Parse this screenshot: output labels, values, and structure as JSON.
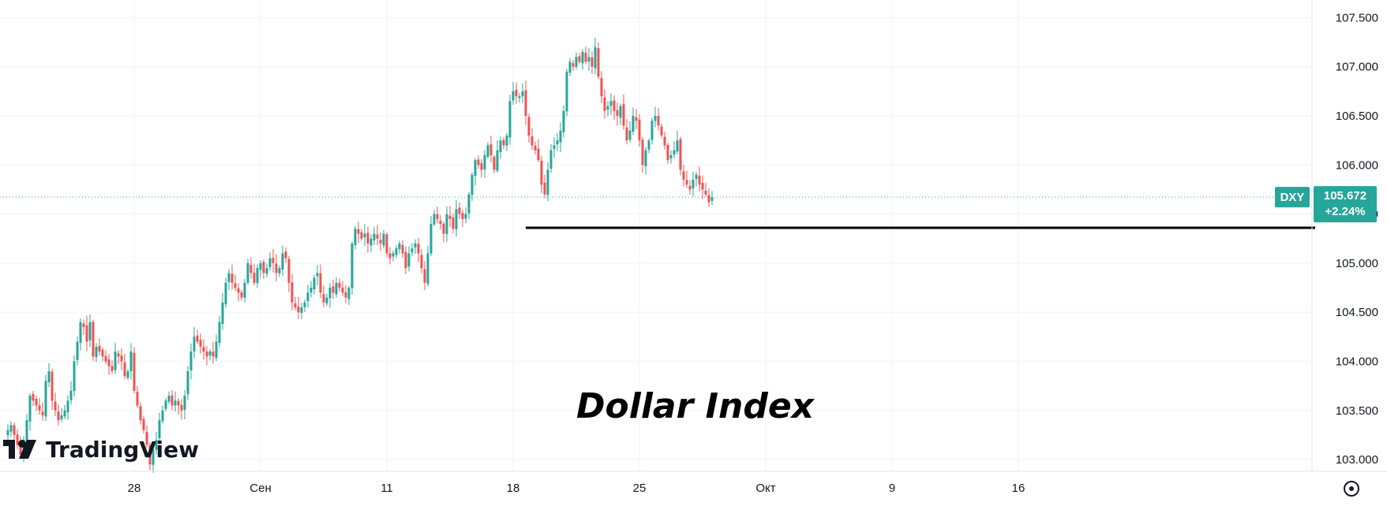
{
  "chart_data": {
    "type": "candlestick",
    "symbol": "DXY",
    "last_price": "105.672",
    "change": "+2.24%",
    "annotation": "Dollar Index",
    "brand": "TradingView",
    "y_ticks": [
      "107.500",
      "107.000",
      "106.500",
      "106.000",
      "105.500",
      "105.000",
      "104.500",
      "104.000",
      "103.500",
      "103.000"
    ],
    "y_tick_values": [
      107.5,
      107.0,
      106.5,
      106.0,
      105.5,
      105.0,
      104.5,
      104.0,
      103.5,
      103.0
    ],
    "x_ticks": [
      {
        "label": "28",
        "index": 40
      },
      {
        "label": "Сен",
        "index": 80
      },
      {
        "label": "11",
        "index": 120
      },
      {
        "label": "18",
        "index": 160
      },
      {
        "label": "25",
        "index": 200
      },
      {
        "label": "Окт",
        "index": 240
      },
      {
        "label": "9",
        "index": 280
      },
      {
        "label": "16",
        "index": 320
      }
    ],
    "ylim": [
      102.88,
      107.68
    ],
    "support_level": 105.36,
    "colors": {
      "up": "#26a69a",
      "down": "#ef5350",
      "grid": "#f0f3fa",
      "line": "#000000",
      "tag": "#26a69a"
    },
    "closes": [
      103.3,
      103.35,
      103.25,
      103.15,
      103.05,
      103.2,
      103.4,
      103.65,
      103.6,
      103.55,
      103.5,
      103.45,
      103.8,
      103.9,
      103.6,
      103.5,
      103.4,
      103.45,
      103.5,
      103.6,
      103.7,
      104.0,
      104.2,
      104.4,
      104.35,
      104.2,
      104.4,
      104.05,
      104.15,
      104.1,
      104.05,
      104.0,
      103.95,
      103.9,
      104.1,
      104.05,
      104.0,
      103.85,
      103.9,
      104.1,
      103.7,
      103.55,
      103.4,
      103.3,
      103.15,
      102.95,
      103.1,
      103.2,
      103.4,
      103.5,
      103.6,
      103.65,
      103.55,
      103.6,
      103.55,
      103.5,
      103.65,
      103.9,
      104.1,
      104.25,
      104.2,
      104.15,
      104.1,
      104.05,
      104.1,
      104.05,
      104.2,
      104.4,
      104.6,
      104.8,
      104.9,
      104.8,
      104.75,
      104.7,
      104.65,
      104.8,
      105.0,
      104.9,
      104.8,
      104.95,
      105.0,
      104.9,
      104.95,
      105.05,
      105.0,
      104.9,
      104.95,
      105.1,
      105.05,
      104.8,
      104.6,
      104.55,
      104.5,
      104.55,
      104.6,
      104.7,
      104.75,
      104.85,
      104.9,
      104.7,
      104.6,
      104.65,
      104.75,
      104.7,
      104.8,
      104.75,
      104.7,
      104.65,
      104.75,
      105.2,
      105.35,
      105.3,
      105.25,
      105.3,
      105.2,
      105.25,
      105.3,
      105.25,
      105.2,
      105.3,
      105.1,
      105.05,
      105.1,
      105.15,
      105.2,
      105.1,
      104.95,
      105.1,
      105.15,
      105.2,
      105.1,
      104.95,
      104.8,
      105.1,
      105.4,
      105.5,
      105.45,
      105.4,
      105.3,
      105.5,
      105.45,
      105.35,
      105.55,
      105.5,
      105.45,
      105.5,
      105.7,
      105.9,
      106.05,
      106.0,
      105.95,
      106.1,
      106.2,
      106.1,
      105.95,
      106.15,
      106.25,
      106.2,
      106.3,
      106.65,
      106.75,
      106.7,
      106.7,
      106.75,
      106.5,
      106.3,
      106.2,
      106.15,
      106.05,
      105.8,
      105.7,
      105.95,
      106.15,
      106.2,
      106.25,
      106.35,
      106.55,
      106.95,
      107.05,
      107.0,
      107.1,
      107.05,
      107.15,
      107.05,
      107.1,
      107.0,
      107.2,
      106.9,
      106.7,
      106.55,
      106.6,
      106.65,
      106.55,
      106.5,
      106.6,
      106.4,
      106.25,
      106.35,
      106.5,
      106.45,
      106.25,
      106.0,
      106.15,
      106.25,
      106.45,
      106.5,
      106.4,
      106.3,
      106.2,
      106.05,
      106.1,
      106.15,
      106.25,
      105.95,
      105.85,
      105.8,
      105.75,
      105.85,
      105.9,
      105.8,
      105.75,
      105.7,
      105.62,
      105.67
    ],
    "stock_symbol_label": "DXY"
  }
}
